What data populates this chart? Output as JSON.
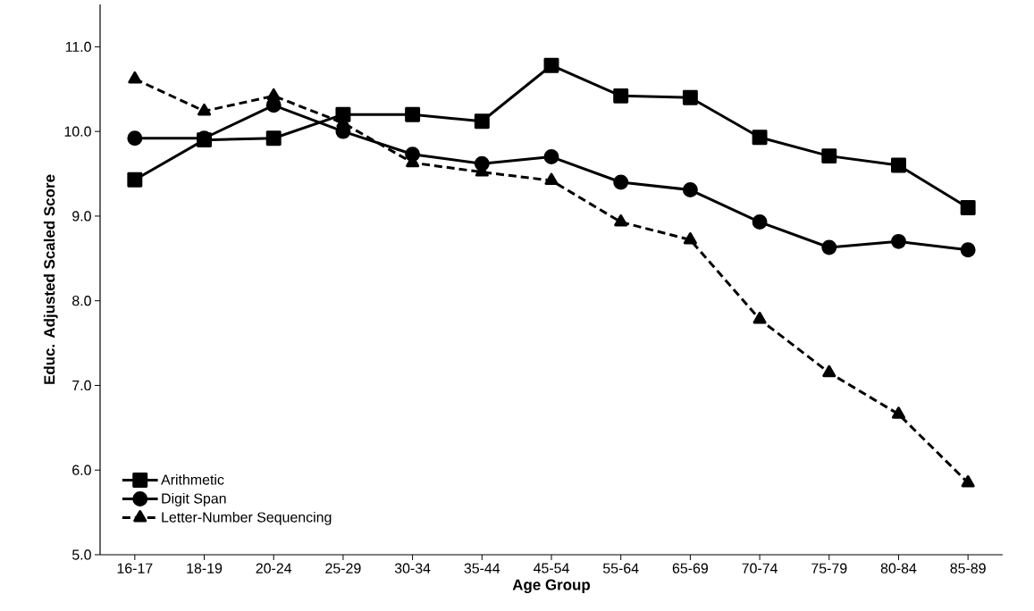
{
  "chart_data": {
    "type": "line",
    "xlabel": "Age Group",
    "ylabel": "Educ. Adjusted Scaled Score",
    "categories": [
      "16-17",
      "18-19",
      "20-24",
      "25-29",
      "30-34",
      "35-44",
      "45-54",
      "55-64",
      "65-69",
      "70-74",
      "75-79",
      "80-84",
      "85-89"
    ],
    "ylim": [
      5,
      11.5
    ],
    "yticks": [
      {
        "value": 5,
        "label": "5.0"
      },
      {
        "value": 6,
        "label": "6.0"
      },
      {
        "value": 7,
        "label": "7.0"
      },
      {
        "value": 8,
        "label": "8.0"
      },
      {
        "value": 9,
        "label": "9.0"
      },
      {
        "value": 10,
        "label": "10.0"
      },
      {
        "value": 11,
        "label": "11.0"
      }
    ],
    "legend": "bottom left",
    "grid": false,
    "series": [
      {
        "name": "Arithmetic",
        "color": "#000000",
        "marker": "square",
        "line_style": "solid",
        "values": [
          9.43,
          9.9,
          9.92,
          10.2,
          10.2,
          10.12,
          10.78,
          10.42,
          10.4,
          9.93,
          9.71,
          9.6,
          9.1
        ]
      },
      {
        "name": "Digit Span",
        "color": "#000000",
        "marker": "circle",
        "line_style": "solid",
        "values": [
          9.92,
          9.92,
          10.31,
          10.0,
          9.73,
          9.62,
          9.7,
          9.4,
          9.31,
          8.93,
          8.63,
          8.7,
          8.6
        ]
      },
      {
        "name": "Letter-Number Sequencing",
        "color": "#000000",
        "marker": "triangle",
        "line_style": "dashed",
        "values": [
          10.62,
          10.24,
          10.42,
          10.1,
          9.63,
          9.52,
          9.42,
          8.93,
          8.72,
          7.78,
          7.15,
          6.66,
          5.85
        ]
      }
    ]
  }
}
